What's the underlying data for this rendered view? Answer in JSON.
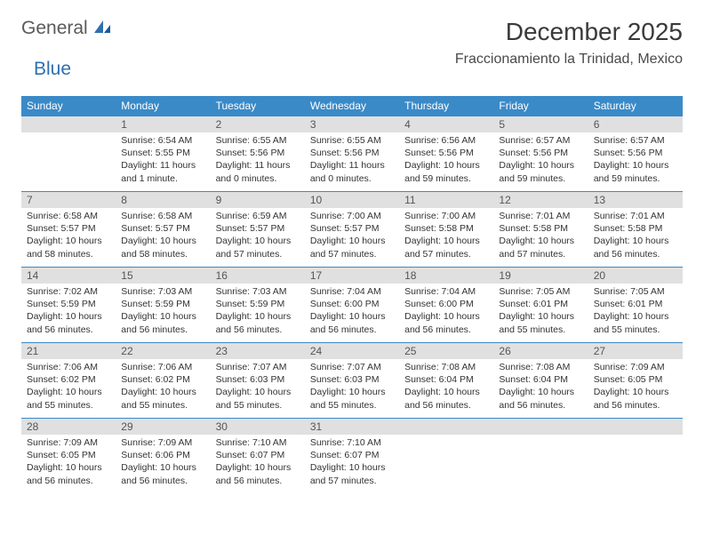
{
  "logo": {
    "part1": "General",
    "part2": "Blue"
  },
  "title": "December 2025",
  "location": "Fraccionamiento la Trinidad, Mexico",
  "weekdays": [
    "Sunday",
    "Monday",
    "Tuesday",
    "Wednesday",
    "Thursday",
    "Friday",
    "Saturday"
  ],
  "colors": {
    "header_bg": "#3a8ac8",
    "header_text": "#ffffff",
    "daynum_bg": "#e0e0e0",
    "border": "#3a8ac8",
    "logo_gray": "#5a5a5a",
    "logo_blue": "#2f6fb0"
  },
  "weeks": [
    [
      null,
      {
        "n": "1",
        "sr": "Sunrise: 6:54 AM",
        "ss": "Sunset: 5:55 PM",
        "dl": "Daylight: 11 hours and 1 minute."
      },
      {
        "n": "2",
        "sr": "Sunrise: 6:55 AM",
        "ss": "Sunset: 5:56 PM",
        "dl": "Daylight: 11 hours and 0 minutes."
      },
      {
        "n": "3",
        "sr": "Sunrise: 6:55 AM",
        "ss": "Sunset: 5:56 PM",
        "dl": "Daylight: 11 hours and 0 minutes."
      },
      {
        "n": "4",
        "sr": "Sunrise: 6:56 AM",
        "ss": "Sunset: 5:56 PM",
        "dl": "Daylight: 10 hours and 59 minutes."
      },
      {
        "n": "5",
        "sr": "Sunrise: 6:57 AM",
        "ss": "Sunset: 5:56 PM",
        "dl": "Daylight: 10 hours and 59 minutes."
      },
      {
        "n": "6",
        "sr": "Sunrise: 6:57 AM",
        "ss": "Sunset: 5:56 PM",
        "dl": "Daylight: 10 hours and 59 minutes."
      }
    ],
    [
      {
        "n": "7",
        "sr": "Sunrise: 6:58 AM",
        "ss": "Sunset: 5:57 PM",
        "dl": "Daylight: 10 hours and 58 minutes."
      },
      {
        "n": "8",
        "sr": "Sunrise: 6:58 AM",
        "ss": "Sunset: 5:57 PM",
        "dl": "Daylight: 10 hours and 58 minutes."
      },
      {
        "n": "9",
        "sr": "Sunrise: 6:59 AM",
        "ss": "Sunset: 5:57 PM",
        "dl": "Daylight: 10 hours and 57 minutes."
      },
      {
        "n": "10",
        "sr": "Sunrise: 7:00 AM",
        "ss": "Sunset: 5:57 PM",
        "dl": "Daylight: 10 hours and 57 minutes."
      },
      {
        "n": "11",
        "sr": "Sunrise: 7:00 AM",
        "ss": "Sunset: 5:58 PM",
        "dl": "Daylight: 10 hours and 57 minutes."
      },
      {
        "n": "12",
        "sr": "Sunrise: 7:01 AM",
        "ss": "Sunset: 5:58 PM",
        "dl": "Daylight: 10 hours and 57 minutes."
      },
      {
        "n": "13",
        "sr": "Sunrise: 7:01 AM",
        "ss": "Sunset: 5:58 PM",
        "dl": "Daylight: 10 hours and 56 minutes."
      }
    ],
    [
      {
        "n": "14",
        "sr": "Sunrise: 7:02 AM",
        "ss": "Sunset: 5:59 PM",
        "dl": "Daylight: 10 hours and 56 minutes."
      },
      {
        "n": "15",
        "sr": "Sunrise: 7:03 AM",
        "ss": "Sunset: 5:59 PM",
        "dl": "Daylight: 10 hours and 56 minutes."
      },
      {
        "n": "16",
        "sr": "Sunrise: 7:03 AM",
        "ss": "Sunset: 5:59 PM",
        "dl": "Daylight: 10 hours and 56 minutes."
      },
      {
        "n": "17",
        "sr": "Sunrise: 7:04 AM",
        "ss": "Sunset: 6:00 PM",
        "dl": "Daylight: 10 hours and 56 minutes."
      },
      {
        "n": "18",
        "sr": "Sunrise: 7:04 AM",
        "ss": "Sunset: 6:00 PM",
        "dl": "Daylight: 10 hours and 56 minutes."
      },
      {
        "n": "19",
        "sr": "Sunrise: 7:05 AM",
        "ss": "Sunset: 6:01 PM",
        "dl": "Daylight: 10 hours and 55 minutes."
      },
      {
        "n": "20",
        "sr": "Sunrise: 7:05 AM",
        "ss": "Sunset: 6:01 PM",
        "dl": "Daylight: 10 hours and 55 minutes."
      }
    ],
    [
      {
        "n": "21",
        "sr": "Sunrise: 7:06 AM",
        "ss": "Sunset: 6:02 PM",
        "dl": "Daylight: 10 hours and 55 minutes."
      },
      {
        "n": "22",
        "sr": "Sunrise: 7:06 AM",
        "ss": "Sunset: 6:02 PM",
        "dl": "Daylight: 10 hours and 55 minutes."
      },
      {
        "n": "23",
        "sr": "Sunrise: 7:07 AM",
        "ss": "Sunset: 6:03 PM",
        "dl": "Daylight: 10 hours and 55 minutes."
      },
      {
        "n": "24",
        "sr": "Sunrise: 7:07 AM",
        "ss": "Sunset: 6:03 PM",
        "dl": "Daylight: 10 hours and 55 minutes."
      },
      {
        "n": "25",
        "sr": "Sunrise: 7:08 AM",
        "ss": "Sunset: 6:04 PM",
        "dl": "Daylight: 10 hours and 56 minutes."
      },
      {
        "n": "26",
        "sr": "Sunrise: 7:08 AM",
        "ss": "Sunset: 6:04 PM",
        "dl": "Daylight: 10 hours and 56 minutes."
      },
      {
        "n": "27",
        "sr": "Sunrise: 7:09 AM",
        "ss": "Sunset: 6:05 PM",
        "dl": "Daylight: 10 hours and 56 minutes."
      }
    ],
    [
      {
        "n": "28",
        "sr": "Sunrise: 7:09 AM",
        "ss": "Sunset: 6:05 PM",
        "dl": "Daylight: 10 hours and 56 minutes."
      },
      {
        "n": "29",
        "sr": "Sunrise: 7:09 AM",
        "ss": "Sunset: 6:06 PM",
        "dl": "Daylight: 10 hours and 56 minutes."
      },
      {
        "n": "30",
        "sr": "Sunrise: 7:10 AM",
        "ss": "Sunset: 6:07 PM",
        "dl": "Daylight: 10 hours and 56 minutes."
      },
      {
        "n": "31",
        "sr": "Sunrise: 7:10 AM",
        "ss": "Sunset: 6:07 PM",
        "dl": "Daylight: 10 hours and 57 minutes."
      },
      null,
      null,
      null
    ]
  ]
}
